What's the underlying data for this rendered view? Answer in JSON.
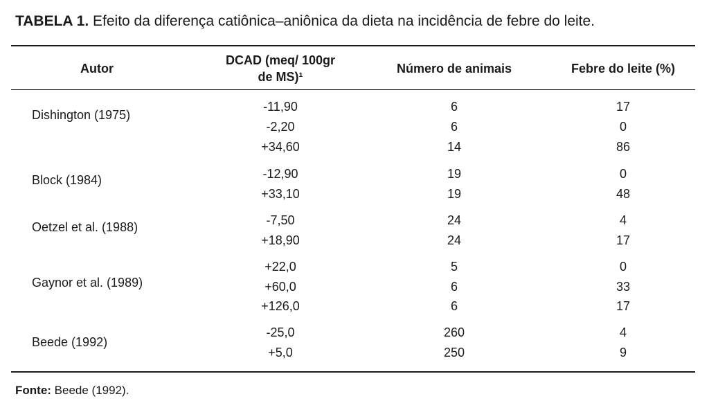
{
  "caption": {
    "label": "TABELA 1.",
    "text": " Efeito da diferença catiônica–aniônica da dieta na incidência de febre do leite."
  },
  "headers": {
    "author": "Autor",
    "dcad_line1": "DCAD (meq/ 100gr",
    "dcad_line2": "de MS)¹",
    "animals": "Número de animais",
    "fever": "Febre do leite (%)"
  },
  "groups": [
    {
      "author": "Dishington (1975)",
      "rows": [
        {
          "dcad": "-11,90",
          "animals": "6",
          "fever": "17"
        },
        {
          "dcad": "-2,20",
          "animals": "6",
          "fever": "0"
        },
        {
          "dcad": "+34,60",
          "animals": "14",
          "fever": "86"
        }
      ]
    },
    {
      "author": "Block (1984)",
      "rows": [
        {
          "dcad": "-12,90",
          "animals": "19",
          "fever": "0"
        },
        {
          "dcad": "+33,10",
          "animals": "19",
          "fever": "48"
        }
      ]
    },
    {
      "author": "Oetzel et al. (1988)",
      "rows": [
        {
          "dcad": "-7,50",
          "animals": "24",
          "fever": "4"
        },
        {
          "dcad": "+18,90",
          "animals": "24",
          "fever": "17"
        }
      ]
    },
    {
      "author": "Gaynor et al. (1989)",
      "rows": [
        {
          "dcad": "+22,0",
          "animals": "5",
          "fever": "0"
        },
        {
          "dcad": "+60,0",
          "animals": "6",
          "fever": "33"
        },
        {
          "dcad": "+126,0",
          "animals": "6",
          "fever": "17"
        }
      ]
    },
    {
      "author": "Beede (1992)",
      "rows": [
        {
          "dcad": "-25,0",
          "animals": "260",
          "fever": "4"
        },
        {
          "dcad": "+5,0",
          "animals": "250",
          "fever": "9"
        }
      ]
    }
  ],
  "footer": {
    "label": "Fonte:",
    "text": " Beede (1992)."
  }
}
